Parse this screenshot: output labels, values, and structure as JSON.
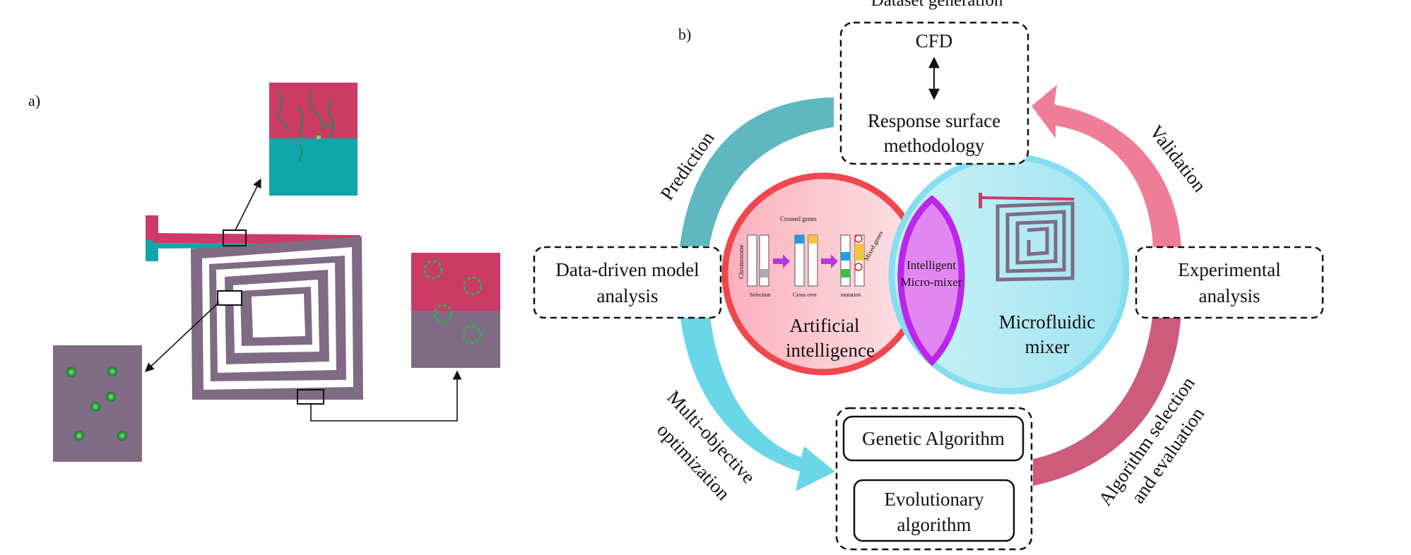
{
  "panel_a": {
    "label": "a)"
  },
  "panel_b": {
    "label": "b)",
    "dataset_generation": "Dataset generation",
    "cfd": "CFD",
    "rsm_line1": "Response surface",
    "rsm_line2": "methodology",
    "prediction": "Prediction",
    "validation": "Validation",
    "data_driven_line1": "Data-driven model",
    "data_driven_line2": "analysis",
    "experimental_line1": "Experimental",
    "experimental_line2": "analysis",
    "ai_line1": "Artificial",
    "ai_line2": "intelligence",
    "mixer_line1": "Microfluidic",
    "mixer_line2": "mixer",
    "intelligent_line1": "Intelligent",
    "intelligent_line2": "Micro-mixer",
    "multi_line1": "Multi-objective",
    "multi_line2": "optimization",
    "algo_line1": "Algorithm selection",
    "algo_line2": "and evaluation",
    "genetic": "Genetic Algorithm",
    "evo_line1": "Evolutionary",
    "evo_line2": "algorithm",
    "ga_chromosome": "Chromosome",
    "ga_crossed_genes": "Crossed genes",
    "ga_mixed_genes": "Mixed genes",
    "ga_selection": "Selection",
    "ga_crossover": "Cross over",
    "ga_mutation": "mutation"
  },
  "colors": {
    "magenta": "#cc3a66",
    "teal": "#0fa7a9",
    "mauve": "#7f6b84",
    "red_ring": "#f0474e",
    "pink_fill": "#fbb9c3",
    "cyan_fill": "#aee9f2",
    "cyan_ring": "#86def0",
    "purple_lens": "#e287f2",
    "purple_ring": "#bb27ea"
  }
}
